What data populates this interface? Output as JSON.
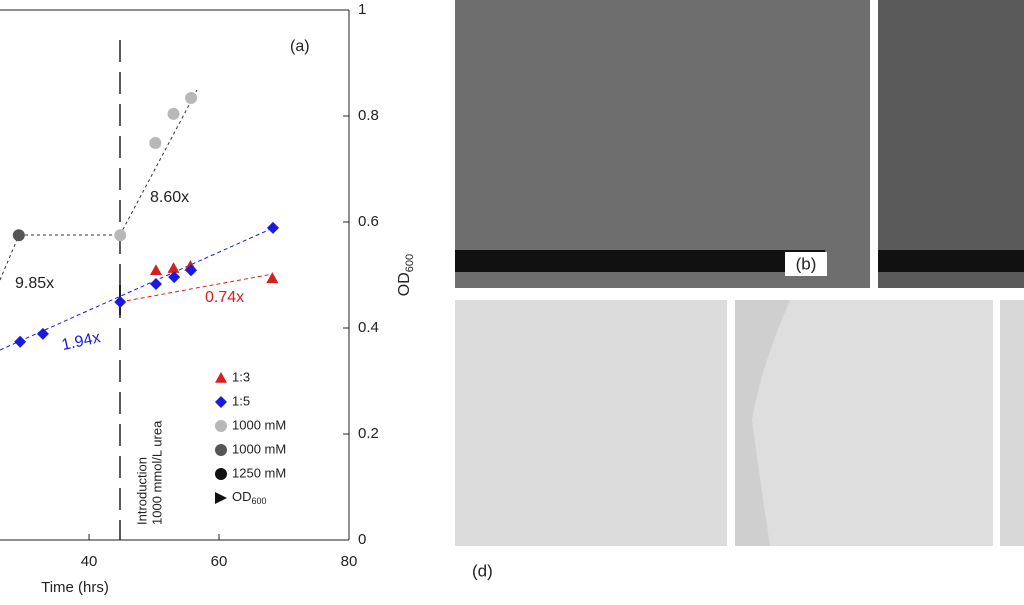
{
  "chart_data": {
    "type": "scatter",
    "panel_label": "(a)",
    "xlabel": "Time (hrs)",
    "y2label": {
      "text": "OD",
      "sub": "600"
    },
    "xlim": [
      26.3,
      80
    ],
    "xticks": [
      40,
      60,
      80
    ],
    "y2lim": [
      0,
      1
    ],
    "y2ticks": [
      0,
      0.2,
      0.4,
      0.6,
      0.8,
      1
    ],
    "series": [
      {
        "name": "1:3",
        "color": "#d62020",
        "marker": "triangle",
        "axis": "y2",
        "x": [
          50.3,
          53,
          55.6,
          68.2
        ],
        "values": [
          0.509,
          0.513,
          0.517,
          0.494
        ]
      },
      {
        "name": "1:5",
        "color": "#1a1adf",
        "marker": "diamond",
        "axis": "y2",
        "x": [
          29.4,
          32.9,
          44.8,
          50.3,
          53.1,
          55.7,
          68.3
        ],
        "values": [
          0.374,
          0.389,
          0.449,
          0.483,
          0.496,
          0.509,
          0.589
        ]
      },
      {
        "name": "1000 mM",
        "color": "#b8b8b8",
        "marker": "circle",
        "axis": "y2",
        "x": [
          44.8,
          50.2,
          53,
          55.7
        ],
        "values": [
          0.575,
          0.749,
          0.804,
          0.834
        ]
      },
      {
        "name": "1000 mM",
        "color": "#555555",
        "marker": "circle",
        "axis": "y2",
        "x": [
          29.2
        ],
        "values": [
          0.575
        ]
      },
      {
        "name": "1250 mM",
        "color": "#111111",
        "marker": "circle",
        "axis": "y2",
        "x": [],
        "values": []
      },
      {
        "name": {
          "text": "OD",
          "sub": "600"
        },
        "color": "#111111",
        "marker": "right-triangle",
        "axis": "y2",
        "x": [],
        "values": []
      }
    ],
    "annotations": {
      "fold_gray": "8.60x",
      "fold_dark": "9.85x",
      "fold_blue": "1.94x",
      "fold_red": "0.74x",
      "event_line1": "Introduction",
      "event_line2": "1000 mmol/L urea"
    }
  },
  "panels": {
    "b": "(b)",
    "d": "(d)"
  }
}
